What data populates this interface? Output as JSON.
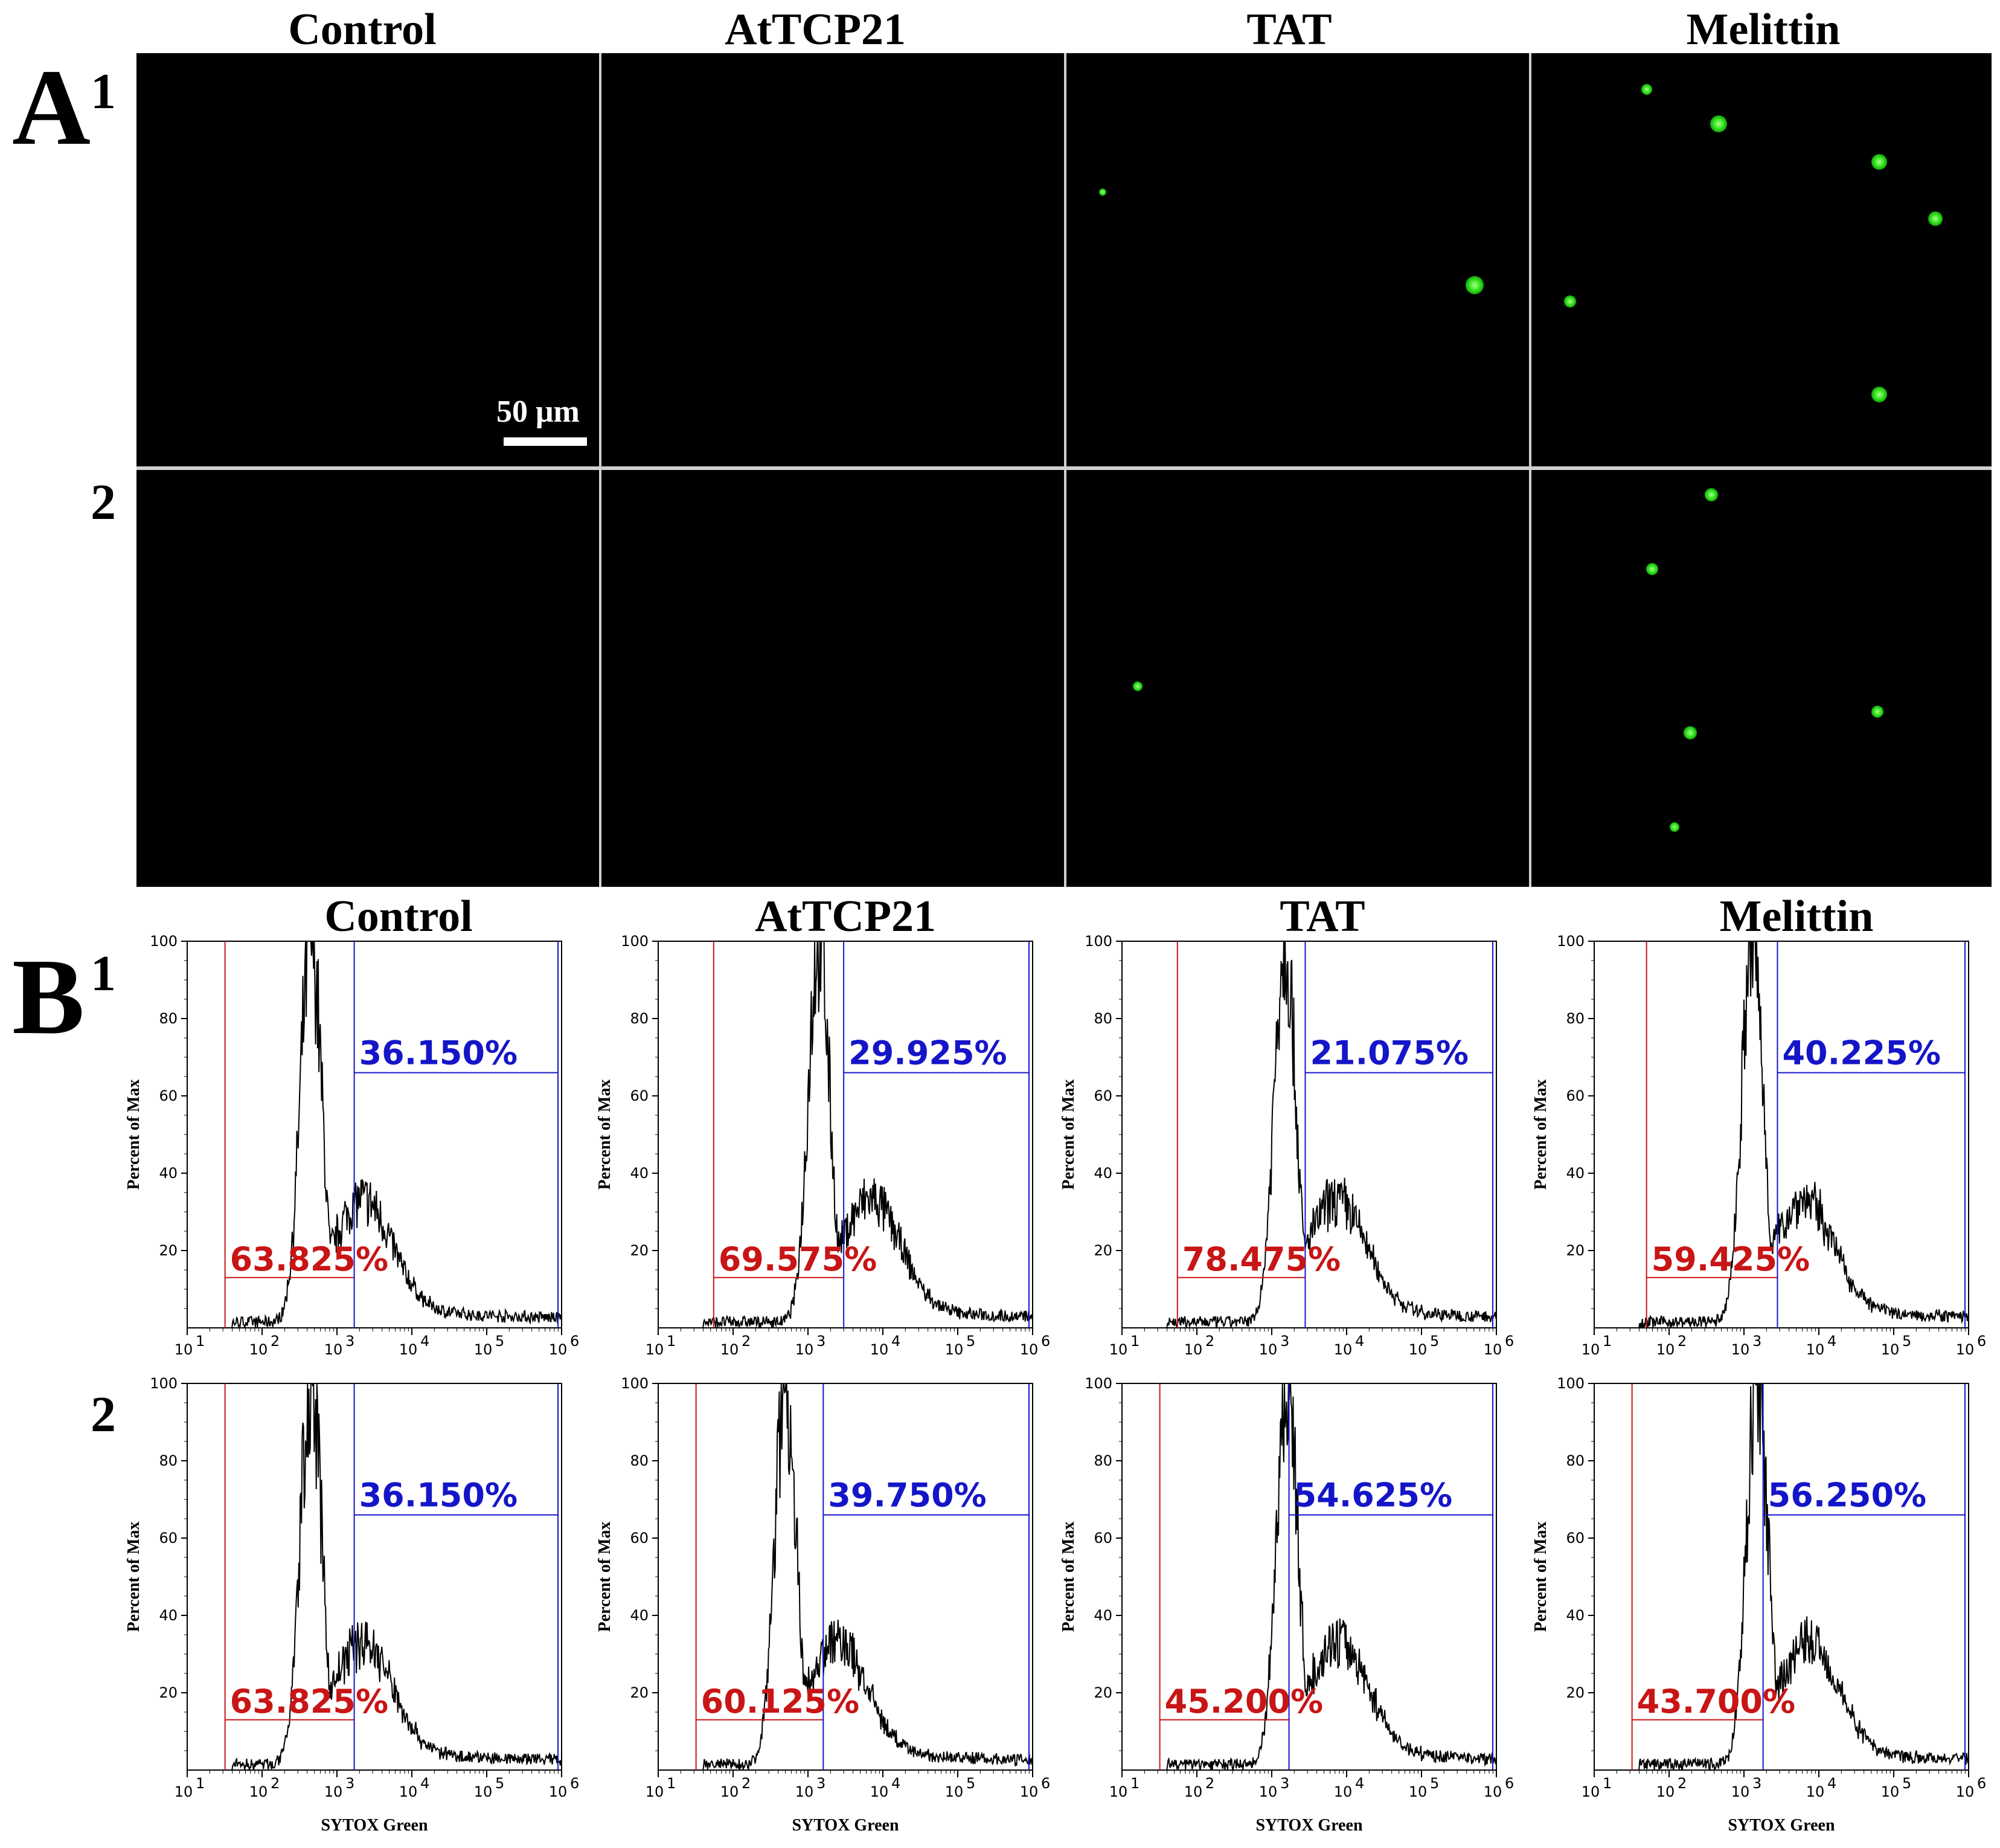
{
  "panel_a": {
    "letter": "A",
    "rows": [
      "1",
      "2"
    ],
    "columns": [
      "Control",
      "AtTCP21",
      "TAT",
      "Melittin"
    ],
    "scale_bar": "50 μm"
  },
  "panel_b": {
    "letter": "B",
    "rows": [
      "1",
      "2"
    ],
    "columns": [
      "Control",
      "AtTCP21",
      "TAT",
      "Melittin"
    ],
    "y_axis_label": "Percent of Max",
    "x_axis_label": "SYTOX Green",
    "y_ticks": [
      "20",
      "40",
      "60",
      "80",
      "100"
    ],
    "x_ticks": [
      "1",
      "2",
      "3",
      "4",
      "5",
      "6"
    ]
  },
  "chart_data": [
    {
      "type": "histogram",
      "row": "1",
      "column": "Control",
      "xlabel": "SYTOX Green",
      "ylabel": "Percent of Max",
      "xscale": "log",
      "xlim": [
        10,
        1000000
      ],
      "ylim": [
        0,
        100
      ],
      "peak_x": 450,
      "negative_gate_pct": "63.825%",
      "positive_gate_pct": "36.150%",
      "gate_split": 1700,
      "neg_gate_start": 32
    },
    {
      "type": "histogram",
      "row": "1",
      "column": "AtTCP21",
      "xlabel": "SYTOX Green",
      "ylabel": "Percent of Max",
      "xscale": "log",
      "xlim": [
        10,
        1000000
      ],
      "ylim": [
        0,
        100
      ],
      "peak_x": 1400,
      "negative_gate_pct": "69.575%",
      "positive_gate_pct": "29.925%",
      "gate_split": 3000,
      "neg_gate_start": 55
    },
    {
      "type": "histogram",
      "row": "1",
      "column": "TAT",
      "xlabel": "SYTOX Green",
      "ylabel": "Percent of Max",
      "xscale": "log",
      "xlim": [
        10,
        1000000
      ],
      "ylim": [
        0,
        100
      ],
      "peak_x": 1500,
      "negative_gate_pct": "78.475%",
      "positive_gate_pct": "21.075%",
      "gate_split": 2800,
      "neg_gate_start": 55
    },
    {
      "type": "histogram",
      "row": "1",
      "column": "Melittin",
      "xlabel": "SYTOX Green",
      "ylabel": "Percent of Max",
      "xscale": "log",
      "xlim": [
        10,
        1000000
      ],
      "ylim": [
        0,
        100
      ],
      "peak_x": 1300,
      "negative_gate_pct": "59.425%",
      "positive_gate_pct": "40.225%",
      "gate_split": 2800,
      "neg_gate_start": 50
    },
    {
      "type": "histogram",
      "row": "2",
      "column": "Control",
      "xlabel": "SYTOX Green",
      "ylabel": "Percent of Max",
      "xscale": "log",
      "xlim": [
        10,
        1000000
      ],
      "ylim": [
        0,
        100
      ],
      "peak_x": 450,
      "negative_gate_pct": "63.825%",
      "positive_gate_pct": "36.150%",
      "gate_split": 1700,
      "neg_gate_start": 32
    },
    {
      "type": "histogram",
      "row": "2",
      "column": "AtTCP21",
      "xlabel": "SYTOX Green",
      "ylabel": "Percent of Max",
      "xscale": "log",
      "xlim": [
        10,
        1000000
      ],
      "ylim": [
        0,
        100
      ],
      "peak_x": 500,
      "negative_gate_pct": "60.125%",
      "positive_gate_pct": "39.750%",
      "gate_split": 1600,
      "neg_gate_start": 32
    },
    {
      "type": "histogram",
      "row": "2",
      "column": "TAT",
      "xlabel": "SYTOX Green",
      "ylabel": "Percent of Max",
      "xscale": "log",
      "xlim": [
        10,
        1000000
      ],
      "ylim": [
        0,
        100
      ],
      "peak_x": 1600,
      "negative_gate_pct": "45.200%",
      "positive_gate_pct": "54.625%",
      "gate_split": 1700,
      "neg_gate_start": 32
    },
    {
      "type": "histogram",
      "row": "2",
      "column": "Melittin",
      "xlabel": "SYTOX Green",
      "ylabel": "Percent of Max",
      "xscale": "log",
      "xlim": [
        10,
        1000000
      ],
      "ylim": [
        0,
        100
      ],
      "peak_x": 1500,
      "negative_gate_pct": "43.700%",
      "positive_gate_pct": "56.250%",
      "gate_split": 1800,
      "neg_gate_start": 32
    }
  ]
}
